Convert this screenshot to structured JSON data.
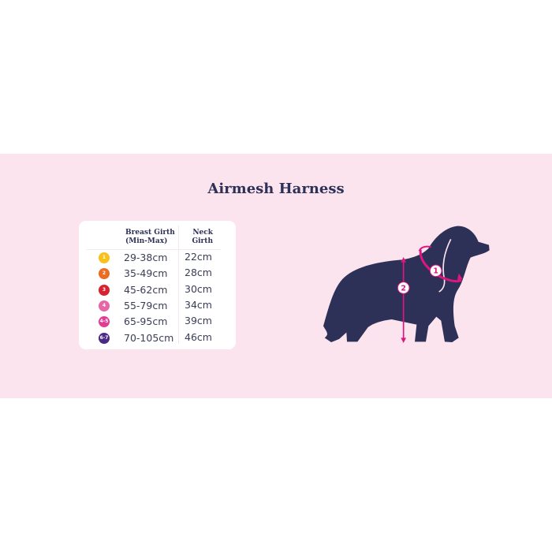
{
  "title": "Airmesh Harness",
  "table": {
    "headers": [
      "Breast Girth\n(Min-Max)",
      "Neck\nGirth"
    ],
    "header_breast": [
      "Breast Girth",
      "(Min-Max)"
    ],
    "header_neck": [
      "Neck",
      "Girth"
    ],
    "rows": [
      {
        "size": "1",
        "color": "#f7c21b",
        "breast": "29-38cm",
        "neck": "22cm"
      },
      {
        "size": "2",
        "color": "#ec6c24",
        "breast": "35-49cm",
        "neck": "28cm"
      },
      {
        "size": "3",
        "color": "#d9222f",
        "breast": "45-62cm",
        "neck": "30cm"
      },
      {
        "size": "4",
        "color": "#e766a8",
        "breast": "55-79cm",
        "neck": "34cm"
      },
      {
        "size": "4-5",
        "color": "#e13d95",
        "breast": "65-95cm",
        "neck": "39cm"
      },
      {
        "size": "6-7",
        "color": "#4b2a86",
        "breast": "70-105cm",
        "neck": "46cm"
      }
    ]
  },
  "diagram": {
    "marker_neck": "1",
    "marker_breast": "2",
    "dog_color": "#2d3157",
    "accent_color": "#e0167f"
  },
  "colors": {
    "band": "#fbe4ee",
    "text": "#2d3157"
  }
}
